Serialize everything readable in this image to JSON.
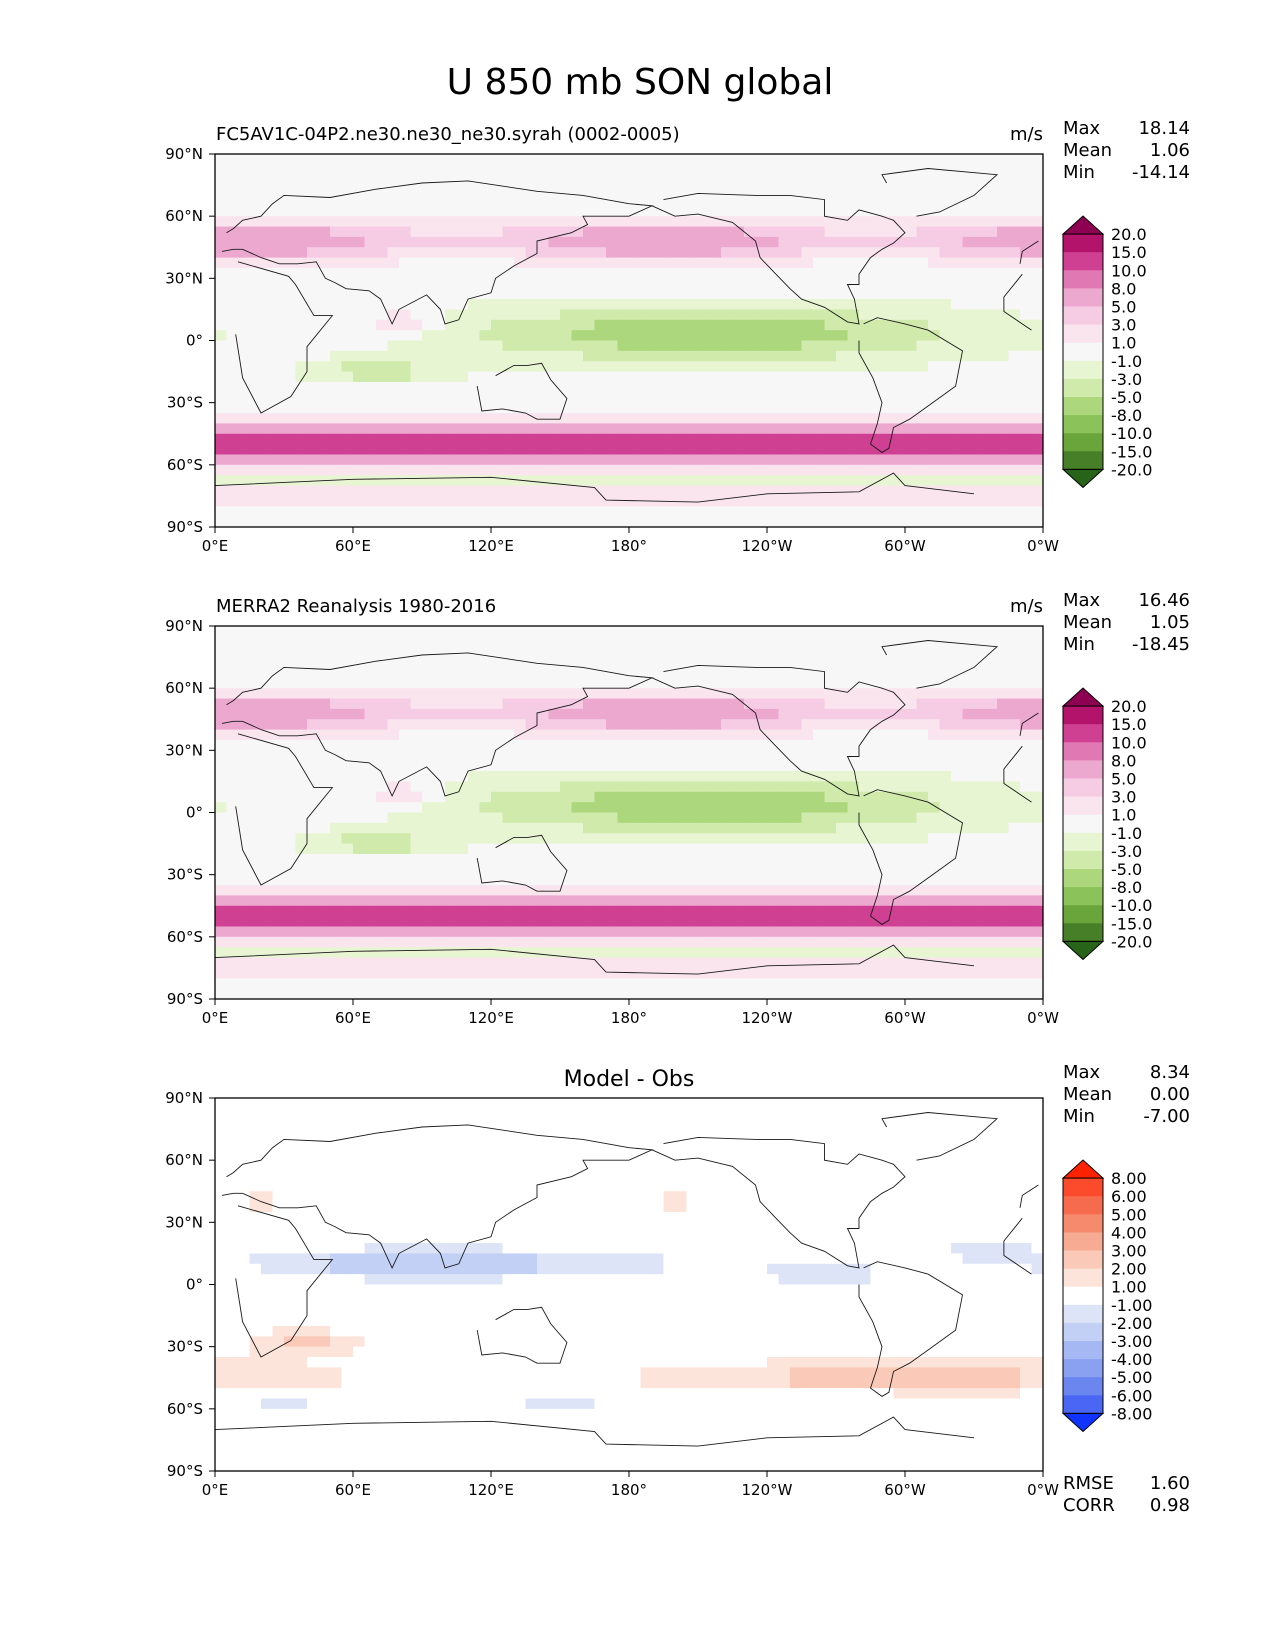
{
  "title": "U 850 mb SON global",
  "lon_ticks": [
    "0°E",
    "60°E",
    "120°E",
    "180°",
    "120°W",
    "60°W",
    "0°W"
  ],
  "lat_ticks": [
    "90°N",
    "60°N",
    "30°N",
    "0°",
    "30°S",
    "60°S",
    "90°S"
  ],
  "panels": [
    {
      "label_left": "FC5AV1C-04P2.ne30.ne30_ne30.syrah (0002-0005)",
      "label_center": "",
      "units": "m/s",
      "stats": [
        {
          "label": "Max",
          "value": "18.14"
        },
        {
          "label": "Mean",
          "value": "1.06"
        },
        {
          "label": "Min",
          "value": "-14.14"
        }
      ],
      "colorbar": {
        "labels": [
          "20.0",
          "15.0",
          "10.0",
          "8.0",
          "5.0",
          "3.0",
          "1.0",
          "-1.0",
          "-3.0",
          "-5.0",
          "-8.0",
          "-10.0",
          "-15.0",
          "-20.0"
        ],
        "colors": [
          "#8e0152",
          "#b3136b",
          "#cf3f92",
          "#df78b3",
          "#eda8d0",
          "#f5cce4",
          "#fae5ef",
          "#f7f7f7",
          "#e8f5d3",
          "#cfeaaa",
          "#add77d",
          "#8cc25a",
          "#6aa53b",
          "#467f27",
          "#276419"
        ]
      },
      "extra_stats": []
    },
    {
      "label_left": "MERRA2 Reanalysis 1980-2016",
      "label_center": "",
      "units": "m/s",
      "stats": [
        {
          "label": "Max",
          "value": "16.46"
        },
        {
          "label": "Mean",
          "value": "1.05"
        },
        {
          "label": "Min",
          "value": "-18.45"
        }
      ],
      "colorbar": {
        "labels": [
          "20.0",
          "15.0",
          "10.0",
          "8.0",
          "5.0",
          "3.0",
          "1.0",
          "-1.0",
          "-3.0",
          "-5.0",
          "-8.0",
          "-10.0",
          "-15.0",
          "-20.0"
        ],
        "colors": [
          "#8e0152",
          "#b3136b",
          "#cf3f92",
          "#df78b3",
          "#eda8d0",
          "#f5cce4",
          "#fae5ef",
          "#f7f7f7",
          "#e8f5d3",
          "#cfeaaa",
          "#add77d",
          "#8cc25a",
          "#6aa53b",
          "#467f27",
          "#276419"
        ]
      },
      "extra_stats": []
    },
    {
      "label_left": "",
      "label_center": "Model - Obs",
      "units": "",
      "stats": [
        {
          "label": "Max",
          "value": "8.34"
        },
        {
          "label": "Mean",
          "value": "0.00"
        },
        {
          "label": "Min",
          "value": "-7.00"
        }
      ],
      "colorbar": {
        "labels": [
          "8.00",
          "6.00",
          "5.00",
          "4.00",
          "3.00",
          "2.00",
          "1.00",
          "-1.00",
          "-2.00",
          "-3.00",
          "-4.00",
          "-5.00",
          "-6.00",
          "-8.00"
        ],
        "colors": [
          "#ff2200",
          "#fb4a2c",
          "#f66b4e",
          "#f58a6c",
          "#f7ab93",
          "#fac9b8",
          "#fde4da",
          "#ffffff",
          "#dde4f7",
          "#c3d0f5",
          "#a6b8f3",
          "#8aa0f1",
          "#6b86ef",
          "#4a66f5",
          "#1133ff"
        ]
      },
      "extra_stats": [
        {
          "label": "RMSE",
          "value": "1.60"
        },
        {
          "label": "CORR",
          "value": "0.98"
        }
      ]
    }
  ]
}
